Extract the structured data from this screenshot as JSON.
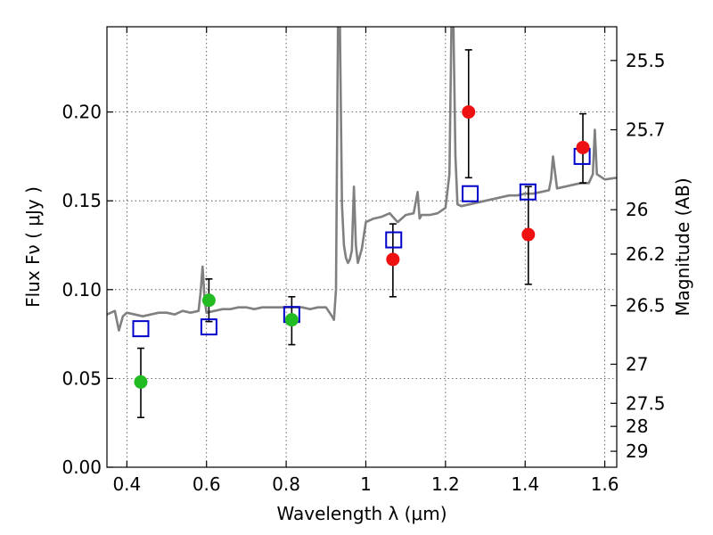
{
  "chart_data": {
    "type": "scatter",
    "xlabel": "Wavelength  λ (μm)",
    "ylabel": "Flux  Fν ( μJy )",
    "y2label": "Magnitude (AB)",
    "xlim": [
      0.35,
      1.63
    ],
    "ylim": [
      0.0,
      0.248
    ],
    "grid": true,
    "x_ticks": [
      0.4,
      0.6,
      0.8,
      1.0,
      1.2,
      1.4,
      1.6
    ],
    "x_tick_labels": [
      "0.4",
      "0.6",
      "0.8",
      "1",
      "1.2",
      "1.4",
      "1.6"
    ],
    "y_ticks": [
      0.0,
      0.05,
      0.1,
      0.15,
      0.2
    ],
    "y_tick_labels": [
      "0.00",
      "0.05",
      "0.10",
      "0.15",
      "0.20"
    ],
    "mag_ticks": [
      {
        "label": "25.5",
        "flux": 0.229
      },
      {
        "label": "25.7",
        "flux": 0.19
      },
      {
        "label": "26",
        "flux": 0.145
      },
      {
        "label": "26.2",
        "flux": 0.12
      },
      {
        "label": "26.5",
        "flux": 0.091
      },
      {
        "label": "27",
        "flux": 0.058
      },
      {
        "label": "27.5",
        "flux": 0.036
      },
      {
        "label": "28",
        "flux": 0.023
      },
      {
        "label": "29",
        "flux": 0.009
      }
    ],
    "colors": {
      "spectrum": "#808080",
      "model_marker": "#0000cc",
      "optical_marker": "#22bb22",
      "nir_marker": "#ee1111",
      "errorbar": "#000000"
    },
    "model_points": {
      "x": [
        0.435,
        0.606,
        0.814,
        1.07,
        1.262,
        1.407,
        1.543
      ],
      "y": [
        0.078,
        0.079,
        0.086,
        0.128,
        0.154,
        0.155,
        0.175
      ]
    },
    "optical_points": {
      "x": [
        0.435,
        0.606,
        0.814
      ],
      "y": [
        0.048,
        0.094,
        0.083
      ],
      "err_low": [
        0.028,
        0.082,
        0.069
      ],
      "err_high": [
        0.067,
        0.106,
        0.096
      ]
    },
    "nir_points": {
      "x": [
        1.068,
        1.258,
        1.408,
        1.545
      ],
      "y": [
        0.117,
        0.2,
        0.131,
        0.18
      ],
      "err_low": [
        0.096,
        0.163,
        0.103,
        0.16
      ],
      "err_high": [
        0.137,
        0.235,
        0.158,
        0.199
      ]
    },
    "spectrum": {
      "x": [
        0.35,
        0.37,
        0.38,
        0.39,
        0.4,
        0.42,
        0.44,
        0.46,
        0.48,
        0.5,
        0.52,
        0.54,
        0.56,
        0.58,
        0.585,
        0.59,
        0.595,
        0.6,
        0.62,
        0.64,
        0.66,
        0.68,
        0.7,
        0.72,
        0.74,
        0.76,
        0.78,
        0.8,
        0.82,
        0.84,
        0.86,
        0.88,
        0.9,
        0.915,
        0.92,
        0.925,
        0.93,
        0.935,
        0.94,
        0.945,
        0.95,
        0.955,
        0.96,
        0.965,
        0.97,
        0.975,
        0.98,
        0.99,
        1.0,
        1.02,
        1.04,
        1.06,
        1.08,
        1.1,
        1.12,
        1.13,
        1.135,
        1.14,
        1.16,
        1.18,
        1.2,
        1.21,
        1.215,
        1.22,
        1.225,
        1.23,
        1.24,
        1.26,
        1.28,
        1.3,
        1.32,
        1.34,
        1.36,
        1.38,
        1.4,
        1.42,
        1.44,
        1.46,
        1.465,
        1.47,
        1.48,
        1.5,
        1.52,
        1.54,
        1.56,
        1.57,
        1.575,
        1.58,
        1.6,
        1.63
      ],
      "y": [
        0.086,
        0.088,
        0.077,
        0.085,
        0.087,
        0.086,
        0.085,
        0.086,
        0.087,
        0.087,
        0.086,
        0.088,
        0.087,
        0.088,
        0.098,
        0.113,
        0.095,
        0.087,
        0.088,
        0.089,
        0.089,
        0.09,
        0.09,
        0.089,
        0.09,
        0.09,
        0.09,
        0.09,
        0.09,
        0.09,
        0.089,
        0.09,
        0.09,
        0.085,
        0.083,
        0.1,
        0.248,
        0.248,
        0.148,
        0.125,
        0.118,
        0.115,
        0.117,
        0.122,
        0.158,
        0.125,
        0.115,
        0.123,
        0.138,
        0.14,
        0.141,
        0.143,
        0.138,
        0.142,
        0.143,
        0.155,
        0.14,
        0.142,
        0.142,
        0.143,
        0.146,
        0.165,
        0.248,
        0.248,
        0.175,
        0.148,
        0.147,
        0.148,
        0.149,
        0.15,
        0.151,
        0.152,
        0.153,
        0.153,
        0.154,
        0.154,
        0.155,
        0.156,
        0.162,
        0.175,
        0.157,
        0.158,
        0.159,
        0.16,
        0.16,
        0.165,
        0.19,
        0.165,
        0.162,
        0.163
      ]
    }
  }
}
